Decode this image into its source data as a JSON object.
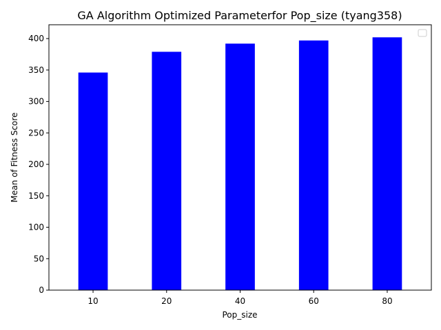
{
  "chart_data": {
    "type": "bar",
    "title": "GA Algorithm Optimized Parameterfor Pop_size (tyang358)",
    "xlabel": "Pop_size",
    "ylabel": "Mean of Fitness Score",
    "categories": [
      "10",
      "20",
      "40",
      "60",
      "80"
    ],
    "values": [
      346,
      379,
      392,
      397,
      402
    ],
    "ylim": [
      0,
      422
    ],
    "yticks": [
      "0",
      "50",
      "100",
      "150",
      "200",
      "250",
      "300",
      "350",
      "400"
    ],
    "bar_color": "#0000ff",
    "grid": false,
    "legend": "top-right, empty"
  }
}
